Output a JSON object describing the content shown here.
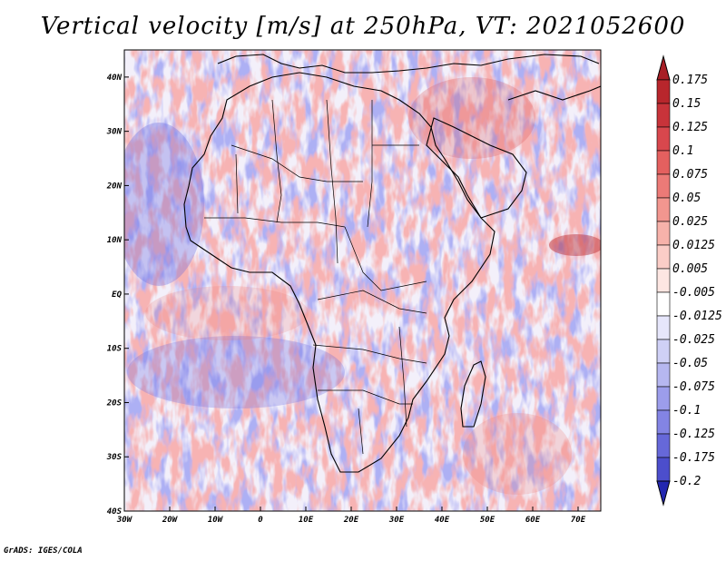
{
  "title": "Vertical velocity [m/s] at 250hPa, VT: 2021052600",
  "credit": "GrADS: IGES/COLA",
  "map": {
    "projection": "latlon",
    "lon_range": [
      -30,
      75
    ],
    "lat_range": [
      -40,
      45
    ],
    "x_ticks": [
      {
        "value": -30,
        "label": "30W"
      },
      {
        "value": -20,
        "label": "20W"
      },
      {
        "value": -10,
        "label": "10W"
      },
      {
        "value": 0,
        "label": "0"
      },
      {
        "value": 10,
        "label": "10E"
      },
      {
        "value": 20,
        "label": "20E"
      },
      {
        "value": 30,
        "label": "30E"
      },
      {
        "value": 40,
        "label": "40E"
      },
      {
        "value": 50,
        "label": "50E"
      },
      {
        "value": 60,
        "label": "60E"
      },
      {
        "value": 70,
        "label": "70E"
      }
    ],
    "y_ticks": [
      {
        "value": 40,
        "label": "40N"
      },
      {
        "value": 30,
        "label": "30N"
      },
      {
        "value": 20,
        "label": "20N"
      },
      {
        "value": 10,
        "label": "10N"
      },
      {
        "value": 0,
        "label": "EQ"
      },
      {
        "value": -10,
        "label": "10S"
      },
      {
        "value": -20,
        "label": "20S"
      },
      {
        "value": -30,
        "label": "30S"
      },
      {
        "value": -40,
        "label": "40S"
      }
    ]
  },
  "colorbar": {
    "levels": [
      {
        "label": "0.175",
        "color": "#b8262c"
      },
      {
        "label": "0.15",
        "color": "#c8333a"
      },
      {
        "label": "0.125",
        "color": "#d8474d"
      },
      {
        "label": "0.1",
        "color": "#e4605f"
      },
      {
        "label": "0.075",
        "color": "#ec7a77"
      },
      {
        "label": "0.05",
        "color": "#f2968f"
      },
      {
        "label": "0.025",
        "color": "#f7b2aa"
      },
      {
        "label": "0.0125",
        "color": "#fbcdc7"
      },
      {
        "label": "0.005",
        "color": "#fde6e2"
      },
      {
        "label": "-0.005",
        "color": "#ffffff"
      },
      {
        "label": "-0.0125",
        "color": "#e6e6fb"
      },
      {
        "label": "-0.025",
        "color": "#cfd0f6"
      },
      {
        "label": "-0.05",
        "color": "#b6b7f0"
      },
      {
        "label": "-0.075",
        "color": "#9c9deb"
      },
      {
        "label": "-0.1",
        "color": "#8384e4"
      },
      {
        "label": "-0.125",
        "color": "#6668d9"
      },
      {
        "label": "-0.175",
        "color": "#4c4ecc"
      },
      {
        "label": "-0.2",
        "color": "#3336bf"
      }
    ],
    "top_triangle_color": "#a81f26",
    "bottom_triangle_color": "#2327b0"
  },
  "chart_data": {
    "type": "heatmap",
    "title": "Vertical velocity [m/s] at 250hPa, VT: 2021052600",
    "variable": "Vertical velocity",
    "units": "m/s",
    "level": "250hPa",
    "valid_time": "2021052600",
    "xlim": [
      -30,
      75
    ],
    "ylim": [
      -40,
      45
    ]
  }
}
